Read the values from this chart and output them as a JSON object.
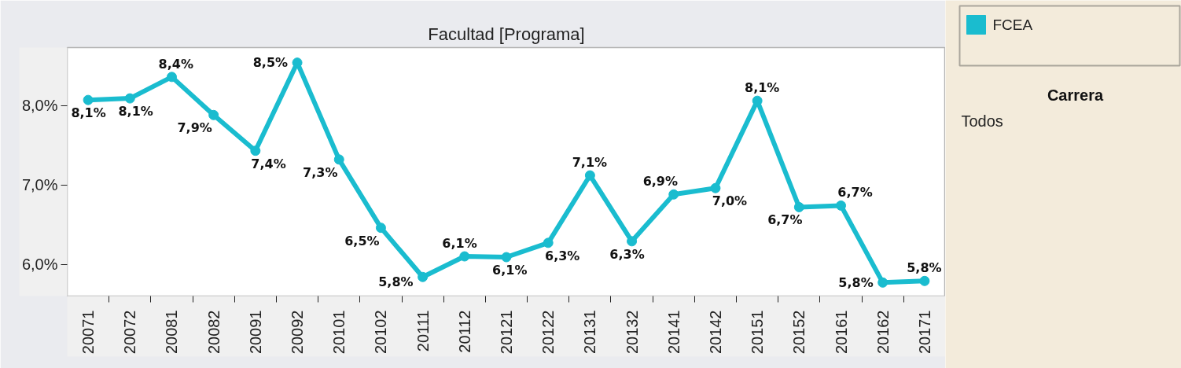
{
  "chart_data": {
    "type": "line",
    "title": "Facultad [Programa]",
    "categories": [
      "20071",
      "20072",
      "20081",
      "20082",
      "20091",
      "20092",
      "20101",
      "20102",
      "20111",
      "20112",
      "20121",
      "20122",
      "20131",
      "20132",
      "20141",
      "20142",
      "20151",
      "20152",
      "20161",
      "20162",
      "20171"
    ],
    "series": [
      {
        "name": "FCEA",
        "color": "#1abccf",
        "values": [
          8.07,
          8.09,
          8.36,
          7.88,
          7.43,
          8.54,
          7.32,
          6.46,
          5.84,
          6.1,
          6.09,
          6.27,
          7.12,
          6.29,
          6.88,
          6.96,
          8.06,
          6.72,
          6.74,
          5.77,
          5.79
        ],
        "value_labels": [
          "8,1%",
          "8,1%",
          "8,4%",
          "7,9%",
          "7,4%",
          "8,5%",
          "7,3%",
          "6,5%",
          "5,8%",
          "6,1%",
          "6,1%",
          "6,3%",
          "7,1%",
          "6,3%",
          "6,9%",
          "7,0%",
          "8,1%",
          "6,7%",
          "6,7%",
          "5,8%",
          "5,8%"
        ]
      }
    ],
    "ylim": [
      5.6,
      8.73
    ],
    "yticks": [
      {
        "value": 6,
        "label": "6,0%"
      },
      {
        "value": 7,
        "label": "7,0%"
      },
      {
        "value": 8,
        "label": "8,0%"
      }
    ],
    "marker": "circle",
    "line_style": "solid",
    "legend": "top right",
    "annotations": [
      "Carrera",
      "Todos"
    ]
  }
}
